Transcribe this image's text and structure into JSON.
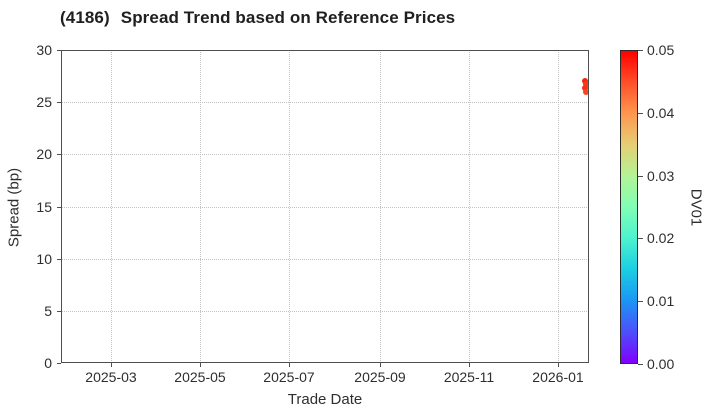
{
  "title": {
    "code": "(4186)",
    "text": "Spread Trend based on Reference Prices"
  },
  "chart_data": {
    "type": "scatter",
    "title": "(4186) Spread Trend based on Reference Prices",
    "xlabel": "Trade Date",
    "ylabel": "Spread (bp)",
    "grid": true,
    "x_domain": [
      "2025-01-26",
      "2026-01-22"
    ],
    "x_ticks": [
      {
        "label": "2025-03",
        "date": "2025-03-01"
      },
      {
        "label": "2025-05",
        "date": "2025-05-01"
      },
      {
        "label": "2025-07",
        "date": "2025-07-01"
      },
      {
        "label": "2025-09",
        "date": "2025-09-01"
      },
      {
        "label": "2025-11",
        "date": "2025-11-01"
      },
      {
        "label": "2026-01",
        "date": "2026-01-01"
      }
    ],
    "ylim": [
      0,
      30
    ],
    "y_ticks": [
      0,
      5,
      10,
      15,
      20,
      25,
      30
    ],
    "colorbar": {
      "label": "DV01",
      "domain": [
        0,
        0.05
      ],
      "ticks": [
        "0.00",
        "0.01",
        "0.02",
        "0.03",
        "0.04",
        "0.05"
      ],
      "colormap": "rainbow",
      "gradient": [
        {
          "pos": 0.0,
          "color": "#8000ff"
        },
        {
          "pos": 0.1,
          "color": "#4d4ffc"
        },
        {
          "pos": 0.2,
          "color": "#1a96f3"
        },
        {
          "pos": 0.3,
          "color": "#1acee3"
        },
        {
          "pos": 0.4,
          "color": "#4df3ce"
        },
        {
          "pos": 0.5,
          "color": "#80ffb4"
        },
        {
          "pos": 0.6,
          "color": "#b3f396"
        },
        {
          "pos": 0.7,
          "color": "#e6ce74"
        },
        {
          "pos": 0.8,
          "color": "#ff964f"
        },
        {
          "pos": 0.9,
          "color": "#ff4f28"
        },
        {
          "pos": 1.0,
          "color": "#ff0000"
        }
      ]
    },
    "points": [
      {
        "date": "2026-01-19",
        "spread": 27.0,
        "dv01": 0.05,
        "color": "#f2270e"
      },
      {
        "date": "2026-01-20",
        "spread": 26.7,
        "dv01": 0.05,
        "color": "#fa3b16"
      },
      {
        "date": "2026-01-19",
        "spread": 26.35,
        "dv01": 0.049,
        "color": "#f63114"
      },
      {
        "date": "2026-01-20",
        "spread": 26.0,
        "dv01": 0.048,
        "color": "#fb4420"
      }
    ]
  }
}
